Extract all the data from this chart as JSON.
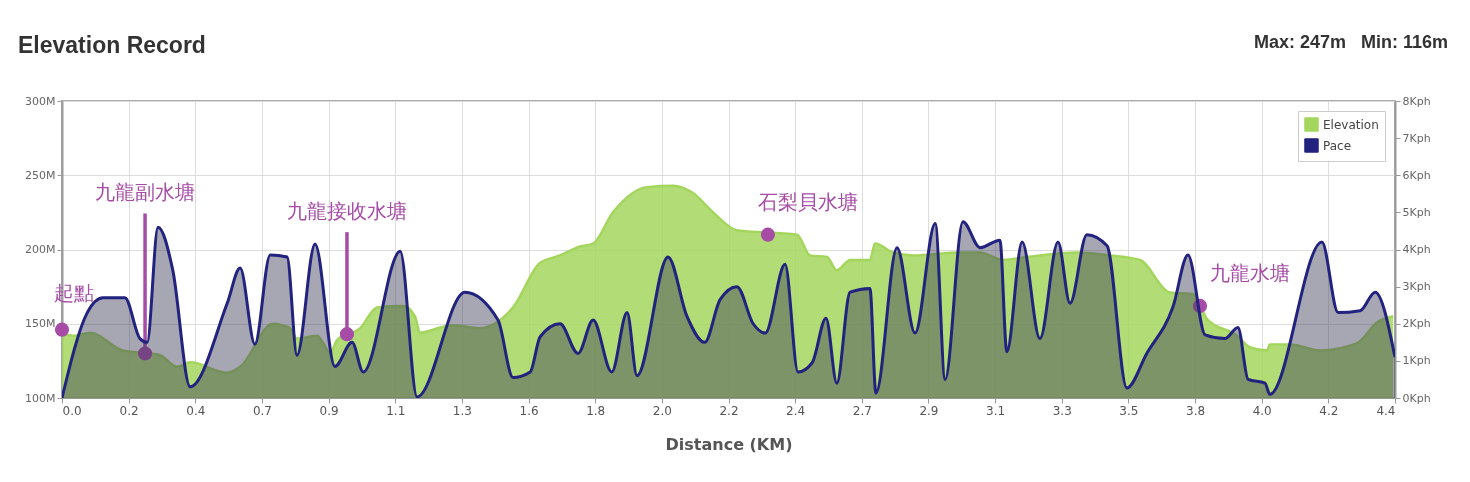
{
  "chart_data": {
    "type": "area",
    "title": "Elevation Record",
    "xlabel": "Distance (KM)",
    "annotations": [
      "Max: 247m   Min: 116m",
      {
        "text": "起點",
        "x": 0,
        "y": 146
      },
      {
        "text": "九龍副水塘",
        "x": 0.276,
        "y": 130
      },
      {
        "text": "九龍接收水塘",
        "x": 0.947,
        "y": 143
      },
      {
        "text": "石梨貝水塘",
        "x": 2.346,
        "y": 210
      },
      {
        "text": "九龍水塘",
        "x": 3.782,
        "y": 162
      }
    ],
    "series": [
      {
        "name": "Elevation",
        "type": "area",
        "color": "#a4d65e",
        "x": [
          0,
          0.043,
          0.093,
          0.202,
          0.325,
          0.383,
          0.426,
          0.549,
          0.592,
          0.701,
          0.757,
          0.781,
          0.848,
          0.868,
          0.891,
          0.914,
          0.991,
          1.047,
          1.134,
          1.173,
          1.19,
          1.267,
          1.3,
          1.389,
          1.446,
          1.499,
          1.589,
          1.655,
          1.722,
          1.765,
          1.831,
          1.944,
          2.031,
          2.097,
          2.164,
          2.243,
          2.443,
          2.486,
          2.542,
          2.575,
          2.619,
          2.685,
          2.702,
          2.762,
          2.828,
          2.984,
          3.051,
          3.127,
          3.207,
          3.373,
          3.483,
          3.582,
          3.682,
          3.758,
          3.806,
          3.905,
          3.949,
          4.005,
          4.014,
          4.082,
          4.181,
          4.304,
          4.371,
          4.424
        ],
        "values": [
          143,
          142,
          144,
          132,
          129,
          121,
          124,
          117,
          121,
          150,
          147,
          140,
          142,
          137,
          130,
          139,
          147,
          161,
          162,
          155,
          144,
          148,
          149,
          147,
          151,
          161,
          191,
          196,
          202,
          204,
          225,
          242,
          243,
          238,
          225,
          213,
          210,
          196,
          195,
          186,
          193,
          193,
          204,
          198,
          196,
          198,
          198,
          193,
          195,
          198,
          196,
          193,
          171,
          170,
          153,
          142,
          134,
          132,
          136,
          136,
          132,
          137,
          151,
          155
        ]
      },
      {
        "name": "Pace",
        "type": "area",
        "axis": "y2",
        "color": "#22227f",
        "x": [
          0,
          0.084,
          0.136,
          0.209,
          0.259,
          0.283,
          0.319,
          0.368,
          0.426,
          0.549,
          0.592,
          0.641,
          0.692,
          0.748,
          0.781,
          0.841,
          0.907,
          0.964,
          1.001,
          1.124,
          1.18,
          1.339,
          1.449,
          1.499,
          1.556,
          1.589,
          1.655,
          1.715,
          1.765,
          1.827,
          1.878,
          1.911,
          2.014,
          2.077,
          2.136,
          2.187,
          2.243,
          2.297,
          2.337,
          2.403,
          2.446,
          2.493,
          2.539,
          2.575,
          2.619,
          2.685,
          2.705,
          2.775,
          2.835,
          2.902,
          2.935,
          2.994,
          3.051,
          3.117,
          3.14,
          3.191,
          3.25,
          3.31,
          3.35,
          3.406,
          3.473,
          3.539,
          3.605,
          3.692,
          3.742,
          3.799,
          3.865,
          3.908,
          3.942,
          3.998,
          4.014,
          4.187,
          4.241,
          4.314,
          4.364,
          4.43
        ],
        "values": [
          0,
          2.3,
          2.7,
          2.7,
          1.6,
          1.5,
          4.6,
          3.45,
          0.3,
          2.55,
          3.5,
          1.45,
          3.85,
          3.8,
          1.15,
          4.15,
          0.85,
          1.5,
          0.7,
          3.95,
          0.03,
          2.85,
          2.1,
          0.55,
          0.7,
          1.65,
          2.0,
          1.2,
          2.1,
          0.7,
          2.3,
          0.6,
          3.8,
          2.2,
          1.5,
          2.65,
          3.0,
          2.0,
          1.75,
          3.6,
          0.7,
          0.95,
          2.15,
          0.4,
          2.85,
          2.95,
          0.13,
          4.05,
          1.75,
          4.7,
          0.5,
          4.75,
          4.05,
          4.25,
          1.25,
          4.2,
          1.6,
          4.2,
          2.55,
          4.4,
          4.1,
          0.27,
          1.2,
          2.45,
          3.85,
          1.7,
          1.6,
          1.9,
          0.5,
          0.4,
          0.1,
          4.2,
          2.3,
          2.35,
          2.85,
          1.1
        ]
      }
    ],
    "xlim": [
      0,
      4.43
    ],
    "xticks": [
      {
        "value": 0,
        "label": "0.0"
      },
      {
        "value": 0.2215,
        "label": "0.2"
      },
      {
        "value": 0.443,
        "label": "0.4"
      },
      {
        "value": 0.6645,
        "label": "0.7"
      },
      {
        "value": 0.886,
        "label": "0.9"
      },
      {
        "value": 1.1075,
        "label": "1.1"
      },
      {
        "value": 1.329,
        "label": "1.3"
      },
      {
        "value": 1.5505,
        "label": "1.6"
      },
      {
        "value": 1.772,
        "label": "1.8"
      },
      {
        "value": 1.9935,
        "label": "2.0"
      },
      {
        "value": 2.215,
        "label": "2.2"
      },
      {
        "value": 2.4365,
        "label": "2.4"
      },
      {
        "value": 2.658,
        "label": "2.7"
      },
      {
        "value": 2.8795,
        "label": "2.9"
      },
      {
        "value": 3.101,
        "label": "3.1"
      },
      {
        "value": 3.3225,
        "label": "3.3"
      },
      {
        "value": 3.544,
        "label": "3.5"
      },
      {
        "value": 3.7655,
        "label": "3.8"
      },
      {
        "value": 3.987,
        "label": "4.0"
      },
      {
        "value": 4.2085,
        "label": "4.2"
      },
      {
        "value": 4.43,
        "label": "4.4"
      }
    ],
    "ylim": [
      100,
      300
    ],
    "yticks": [
      {
        "value": 100,
        "label": "100M"
      },
      {
        "value": 150,
        "label": "150M"
      },
      {
        "value": 200,
        "label": "200M"
      },
      {
        "value": 250,
        "label": "250M"
      },
      {
        "value": 300,
        "label": "300M"
      }
    ],
    "y2lim": [
      0,
      8
    ],
    "y2ticks": [
      {
        "value": 0,
        "label": "0Kph"
      },
      {
        "value": 1,
        "label": "1Kph"
      },
      {
        "value": 2,
        "label": "2Kph"
      },
      {
        "value": 3,
        "label": "3Kph"
      },
      {
        "value": 4,
        "label": "4Kph"
      },
      {
        "value": 5,
        "label": "5Kph"
      },
      {
        "value": 6,
        "label": "6Kph"
      },
      {
        "value": 7,
        "label": "7Kph"
      },
      {
        "value": 8,
        "label": "8Kph"
      }
    ],
    "grid": true,
    "legend": "top right"
  }
}
